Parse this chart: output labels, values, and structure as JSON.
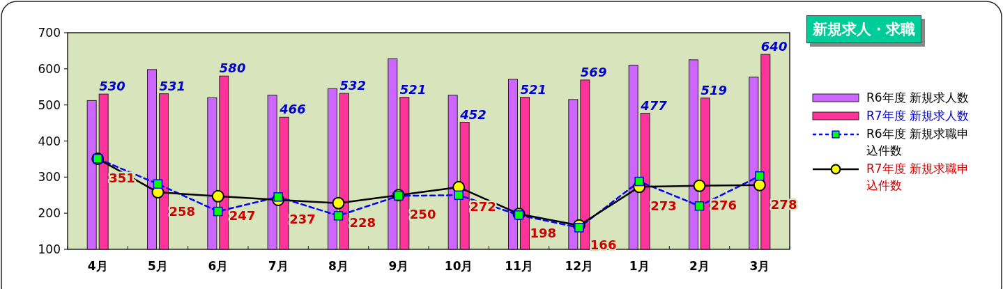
{
  "chart_data": {
    "type": "bar",
    "title": "新規求人・求職",
    "categories": [
      "4月",
      "5月",
      "6月",
      "7月",
      "8月",
      "9月",
      "10月",
      "11月",
      "12月",
      "1月",
      "2月",
      "3月"
    ],
    "ylim": [
      100,
      700
    ],
    "yticks": [
      100,
      200,
      300,
      400,
      500,
      600,
      700
    ],
    "legend": "right",
    "series": [
      {
        "name": "R6年度 新規求人数",
        "color": "#cc66ff",
        "values": [
          512,
          598,
          520,
          527,
          545,
          628,
          527,
          571,
          515,
          610,
          625,
          577
        ]
      },
      {
        "name": "R7年度 新規求人数",
        "color": "#ff3399",
        "values": [
          530,
          531,
          580,
          466,
          532,
          521,
          452,
          521,
          569,
          477,
          519,
          640
        ],
        "value_labels": [
          "530",
          "531",
          "580",
          "466",
          "532",
          "521",
          "452",
          "521",
          "569",
          "477",
          "519",
          "640"
        ]
      },
      {
        "name": "R6年度 新規求職申込件数",
        "type": "line",
        "color": "#0000ff",
        "marker": "square",
        "line_style": "dashed",
        "values": [
          351,
          281,
          205,
          245,
          193,
          248,
          250,
          195,
          160,
          288,
          220,
          303
        ]
      },
      {
        "name": "R7年度 新規求職申込件数",
        "type": "line",
        "color": "#000000",
        "marker": "circle",
        "line_style": "solid",
        "values": [
          351,
          258,
          247,
          237,
          228,
          250,
          272,
          198,
          166,
          273,
          276,
          278
        ],
        "value_labels": [
          "351",
          "258",
          "247",
          "237",
          "228",
          "250",
          "272",
          "198",
          "166",
          "273",
          "276",
          "278"
        ]
      }
    ]
  }
}
